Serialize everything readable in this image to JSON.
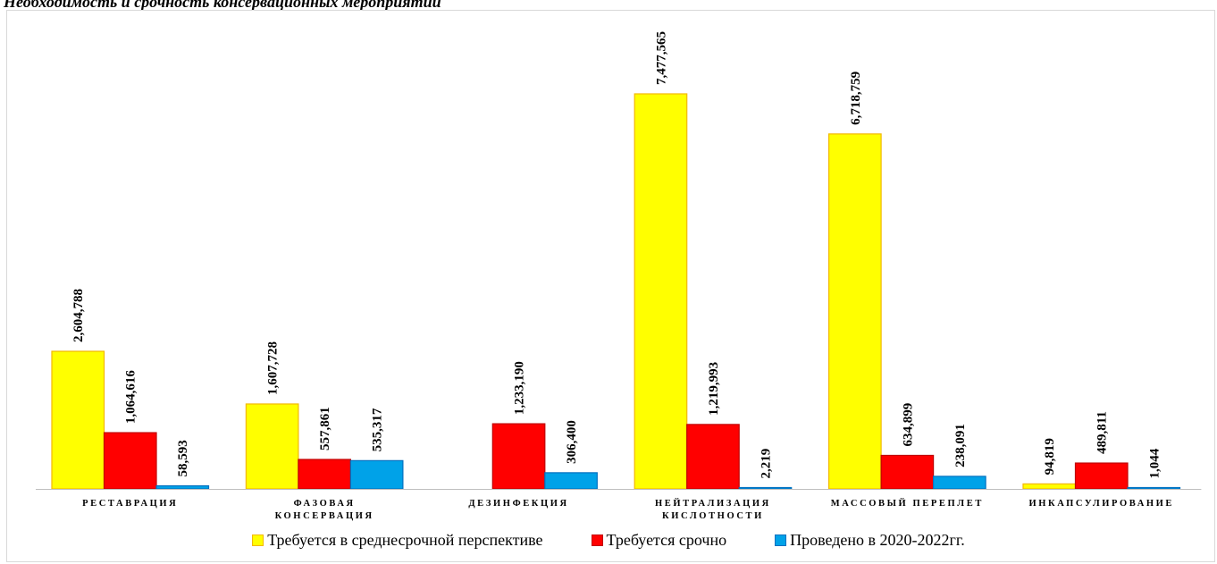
{
  "title": "Необходимость и срочность консервационных мероприятий",
  "colors": {
    "s1_fill": "#ffff00",
    "s1_stroke": "#f2b800",
    "s2_fill": "#ff0000",
    "s2_stroke": "#c00000",
    "s3_fill": "#00a2e8",
    "s3_stroke": "#0070c0"
  },
  "chart_data": {
    "type": "bar",
    "title": "Необходимость и срочность консервационных мероприятий",
    "categories": [
      [
        "РЕСТАВРАЦИЯ"
      ],
      [
        "ФАЗОВАЯ",
        "КОНСЕРВАЦИЯ"
      ],
      [
        "ДЕЗИНФЕКЦИЯ"
      ],
      [
        "НЕЙТРАЛИЗАЦИЯ",
        "КИСЛОТНОСТИ"
      ],
      [
        "МАССОВЫЙ ПЕРЕПЛЕТ"
      ],
      [
        "ИНКАПСУЛИРОВАНИЕ"
      ]
    ],
    "series": [
      {
        "name": "Требуется в среднесрочной перспективе",
        "values": [
          2604788,
          1607728,
          null,
          7477565,
          6718759,
          94819
        ],
        "labels": [
          "2,604,788",
          "1,607,728",
          null,
          "7,477,565",
          "6,718,759",
          "94,819"
        ]
      },
      {
        "name": "Требуется срочно",
        "values": [
          1064616,
          557861,
          1233190,
          1219993,
          634899,
          489811
        ],
        "labels": [
          "1,064,616",
          "557,861",
          "1,233,190",
          "1,219,993",
          "634,899",
          "489,811"
        ]
      },
      {
        "name": "Проведено в 2020-2022гг.",
        "values": [
          58593,
          535317,
          306400,
          2219,
          238091,
          1044
        ],
        "labels": [
          "58,593",
          "535,317",
          "306,400",
          "2,219",
          "238,091",
          "1,044"
        ]
      }
    ],
    "ylim": [
      0,
      7477565
    ],
    "legend": "bottom",
    "grid": false
  }
}
